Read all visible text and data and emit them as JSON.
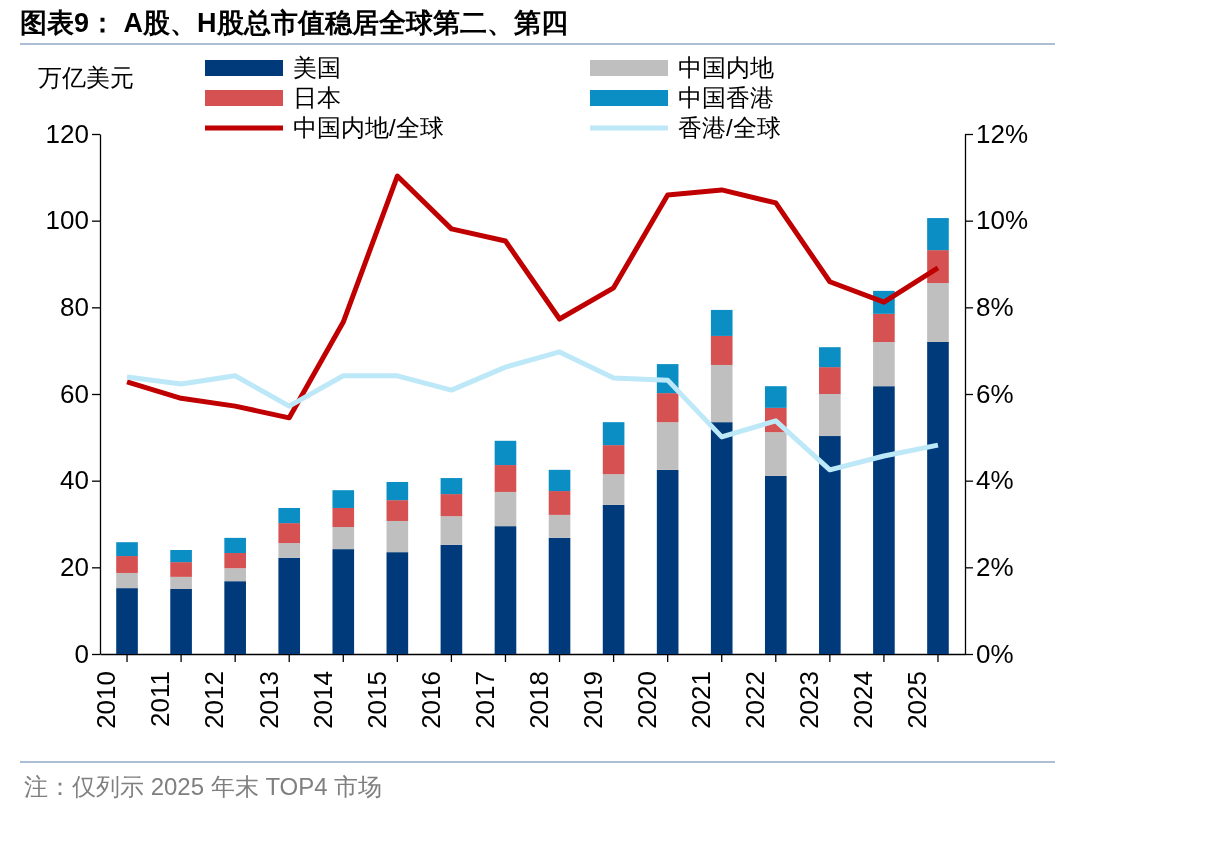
{
  "chart_data": {
    "type": "bar",
    "title": "图表9： A股、H股总市值稳居全球第二、第四",
    "ylabel": "万亿美元",
    "categories": [
      "2010",
      "2011",
      "2012",
      "2013",
      "2014",
      "2015",
      "2016",
      "2017",
      "2018",
      "2019",
      "2020",
      "2021",
      "2022",
      "2023",
      "2024",
      "2025"
    ],
    "stacked": true,
    "series": [
      {
        "name": "美国",
        "color": "#003a7a",
        "values": [
          15.2,
          15.0,
          16.8,
          22.2,
          24.2,
          23.5,
          25.2,
          29.5,
          26.8,
          34.4,
          42.5,
          53.5,
          41.1,
          50.3,
          61.8,
          72.0
        ]
      },
      {
        "name": "中国内地",
        "color": "#bfbfbf",
        "values": [
          3.5,
          2.8,
          3.0,
          3.4,
          5.1,
          7.2,
          6.6,
          7.9,
          5.3,
          7.1,
          11.0,
          13.2,
          10.1,
          9.7,
          10.2,
          13.6
        ]
      },
      {
        "name": "日本",
        "color": "#d65151",
        "values": [
          3.9,
          3.4,
          3.5,
          4.6,
          4.4,
          4.8,
          5.1,
          6.2,
          5.5,
          6.7,
          6.7,
          6.7,
          5.6,
          6.2,
          6.5,
          7.6
        ]
      },
      {
        "name": "中国香港",
        "color": "#0b8ec4",
        "values": [
          3.2,
          2.8,
          3.5,
          3.5,
          4.1,
          4.2,
          3.7,
          5.6,
          4.9,
          5.3,
          6.7,
          6.0,
          5.0,
          4.6,
          5.3,
          7.4
        ]
      },
      {
        "name": "中国内地/全球",
        "type": "line",
        "axis": "y2",
        "color": "#c00000",
        "values": [
          6.28,
          5.9,
          5.72,
          5.45,
          7.66,
          11.03,
          9.81,
          9.53,
          7.73,
          8.45,
          10.59,
          10.71,
          10.41,
          8.59,
          8.12,
          8.91
        ]
      },
      {
        "name": "香港/全球",
        "type": "line",
        "axis": "y2",
        "color": "#bde8f7",
        "values": [
          6.39,
          6.23,
          6.42,
          5.72,
          6.42,
          6.42,
          6.09,
          6.62,
          6.97,
          6.37,
          6.32,
          5.01,
          5.38,
          4.25,
          4.57,
          4.82
        ]
      }
    ],
    "ylim": [
      0,
      120
    ],
    "yticks": [
      0,
      20,
      40,
      60,
      80,
      100,
      120
    ],
    "y2lim": [
      0,
      12
    ],
    "y2ticks": [
      {
        "value": 0,
        "label": "0%"
      },
      {
        "value": 2,
        "label": "2%"
      },
      {
        "value": 4,
        "label": "4%"
      },
      {
        "value": 6,
        "label": "6%"
      },
      {
        "value": 8,
        "label": "8%"
      },
      {
        "value": 10,
        "label": "10%"
      },
      {
        "value": 12,
        "label": "12%"
      }
    ],
    "legend": "top",
    "grid": false,
    "marker": "none",
    "line_style": "solid",
    "annotations": [
      "注：仅列示 2025 年末 TOP4 市场"
    ]
  }
}
